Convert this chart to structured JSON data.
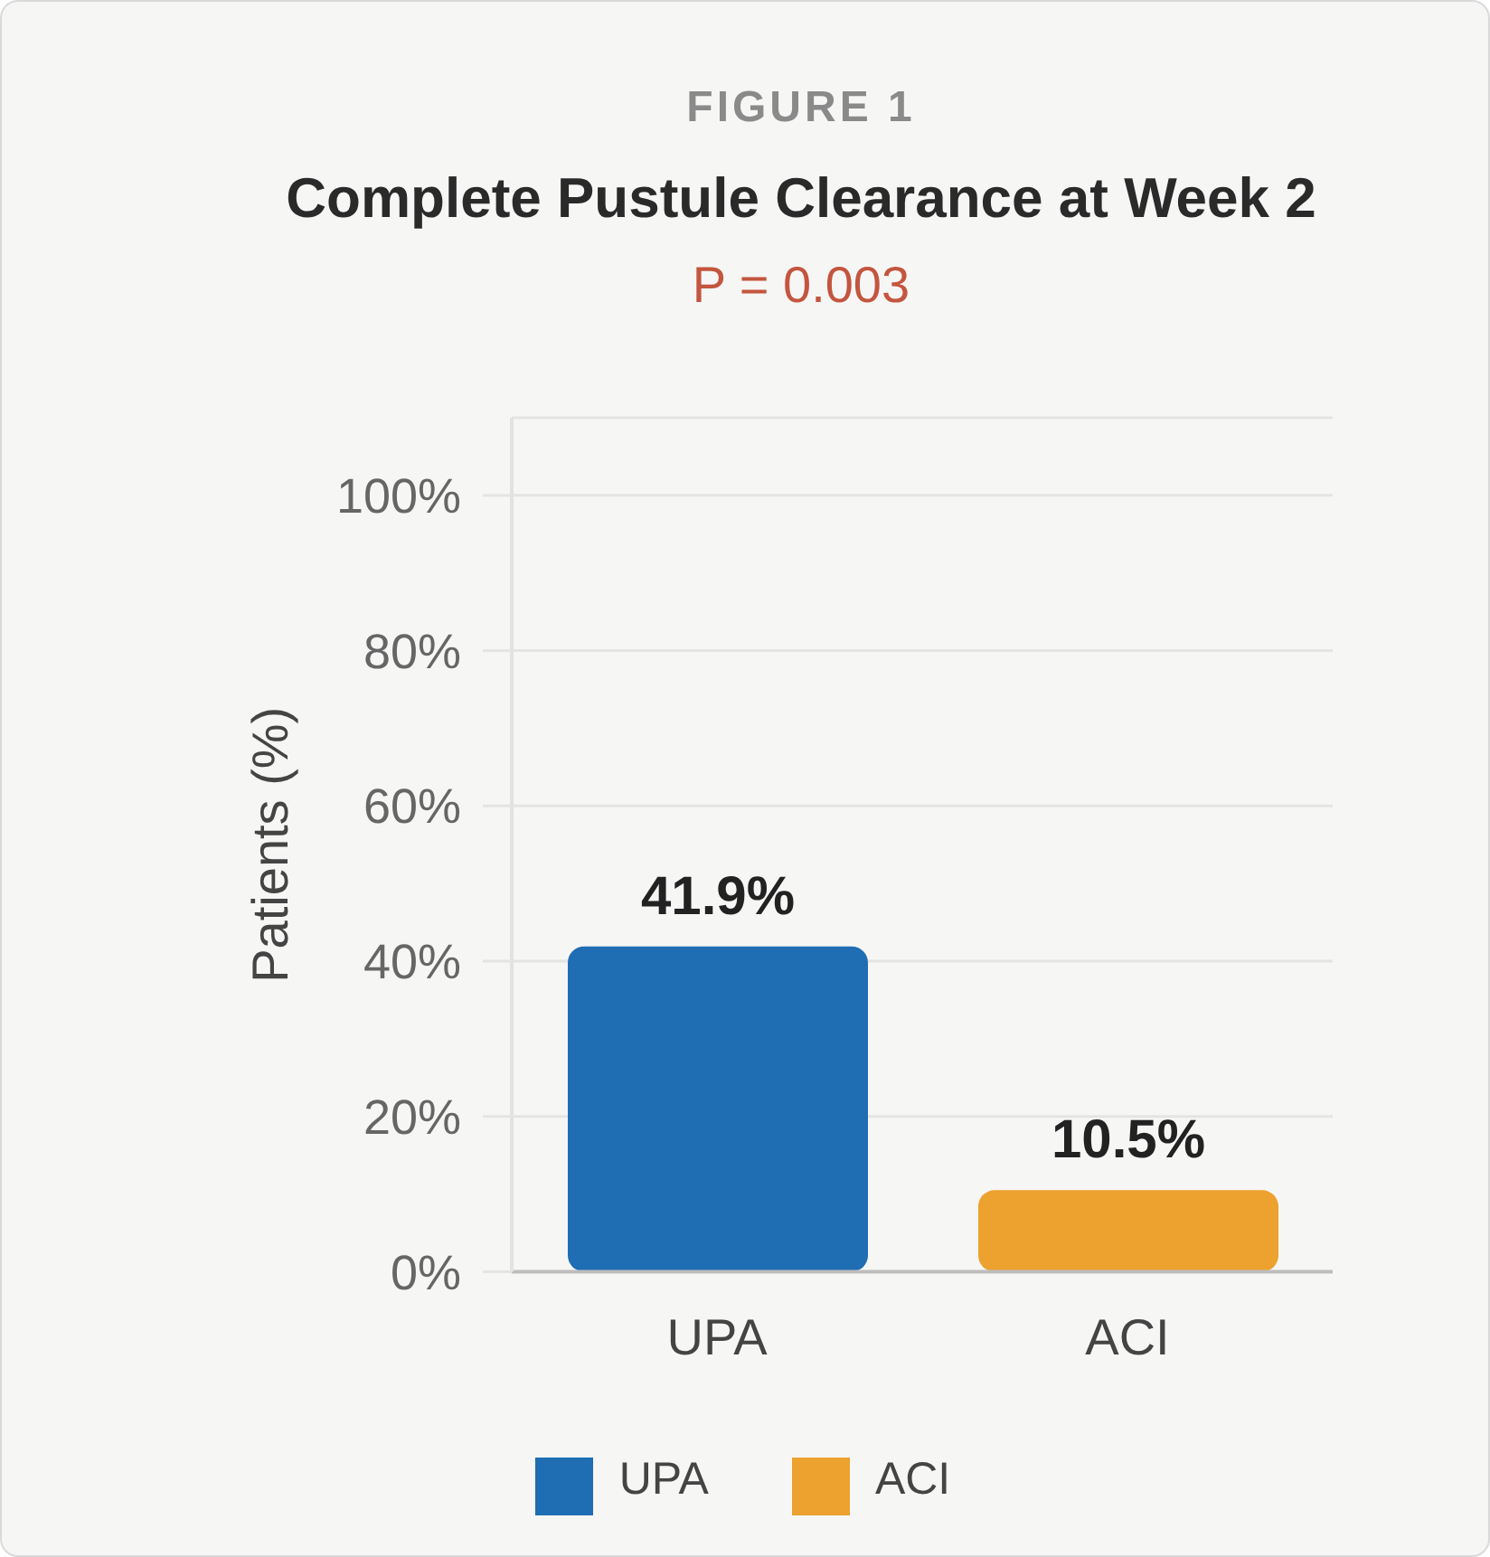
{
  "chart_data": {
    "type": "bar",
    "annotations": [
      "FIGURE 1"
    ],
    "title": "Complete Pustule Clearance at Week 2",
    "subtitle": "P = 0.003",
    "ylabel": "Patients (%)",
    "categories": [
      "UPA",
      "ACI"
    ],
    "series": [
      {
        "name": "UPA",
        "color": "#1f6db3",
        "values": [
          41.9,
          null
        ],
        "value_labels": [
          "41.9%",
          null
        ]
      },
      {
        "name": "ACI",
        "color": "#eda12e",
        "values": [
          null,
          10.5
        ],
        "value_labels": [
          null,
          "10.5%"
        ]
      }
    ],
    "ylim": [
      0,
      110
    ],
    "yticks": [
      {
        "value": 0,
        "label": "0%"
      },
      {
        "value": 20,
        "label": "20%"
      },
      {
        "value": 40,
        "label": "40%"
      },
      {
        "value": 60,
        "label": "60%"
      },
      {
        "value": 80,
        "label": "80%"
      },
      {
        "value": 100,
        "label": "100%"
      }
    ],
    "grid": "y",
    "legend": "bottom"
  }
}
